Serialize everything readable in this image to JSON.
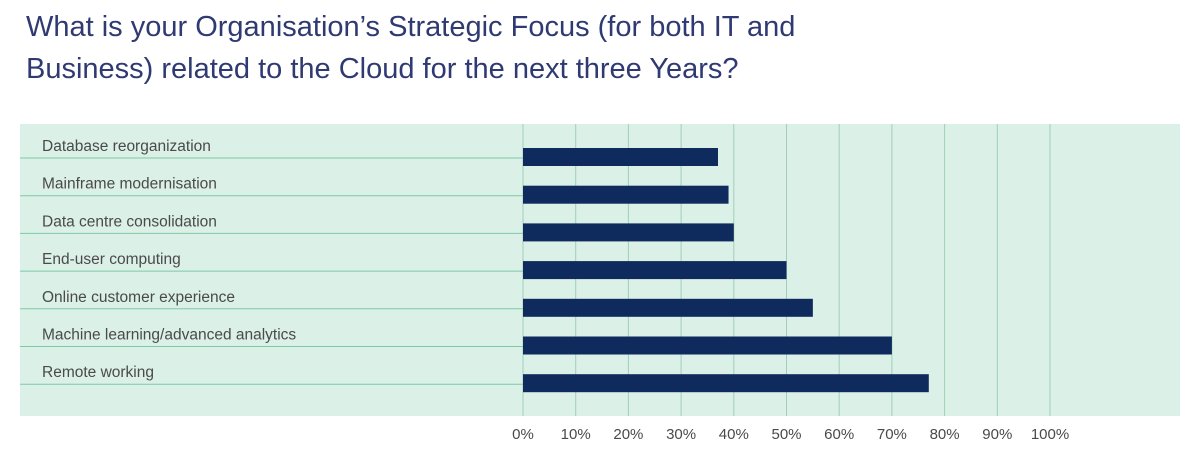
{
  "title_lines": [
    "What is your Organisation’s Strategic Focus (for both IT and",
    "Business) related to the Cloud for the next three Years?"
  ],
  "colors": {
    "title": "#2f3a72",
    "panel_background": "#dbf0e7",
    "bar": "#0f2a5c",
    "gridline": "#9fd0b8",
    "category_underline": "#7ecaa7",
    "text": "#4a4a4a"
  },
  "chart_data": {
    "type": "bar",
    "orientation": "horizontal",
    "categories": [
      "Database reorganization",
      "Mainframe modernisation",
      "Data centre consolidation",
      "End-user computing",
      "Online customer experience",
      "Machine learning/advanced analytics",
      "Remote working"
    ],
    "values": [
      37,
      39,
      40,
      50,
      55,
      70,
      77
    ],
    "xlim": [
      0,
      100
    ],
    "x_ticks": [
      "0%",
      "10%",
      "20%",
      "30%",
      "40%",
      "50%",
      "60%",
      "70%",
      "80%",
      "90%",
      "100%"
    ],
    "grid": true,
    "legend": "none"
  }
}
